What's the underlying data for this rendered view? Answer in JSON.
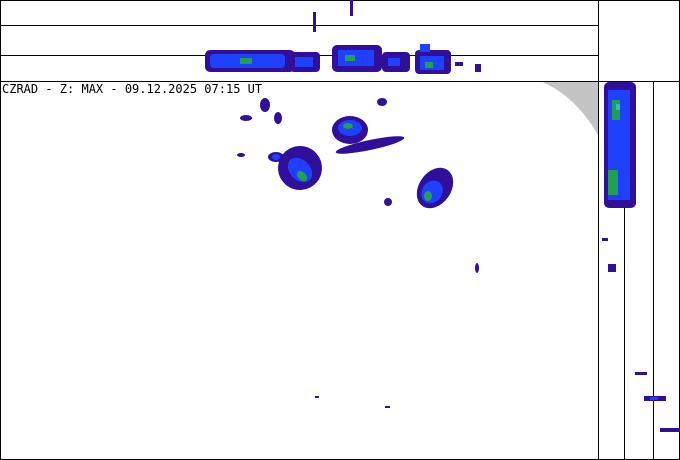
{
  "header": {
    "title": "CZRAD - Z: MAX - 09.12.2025 07:15 UT"
  }
}
